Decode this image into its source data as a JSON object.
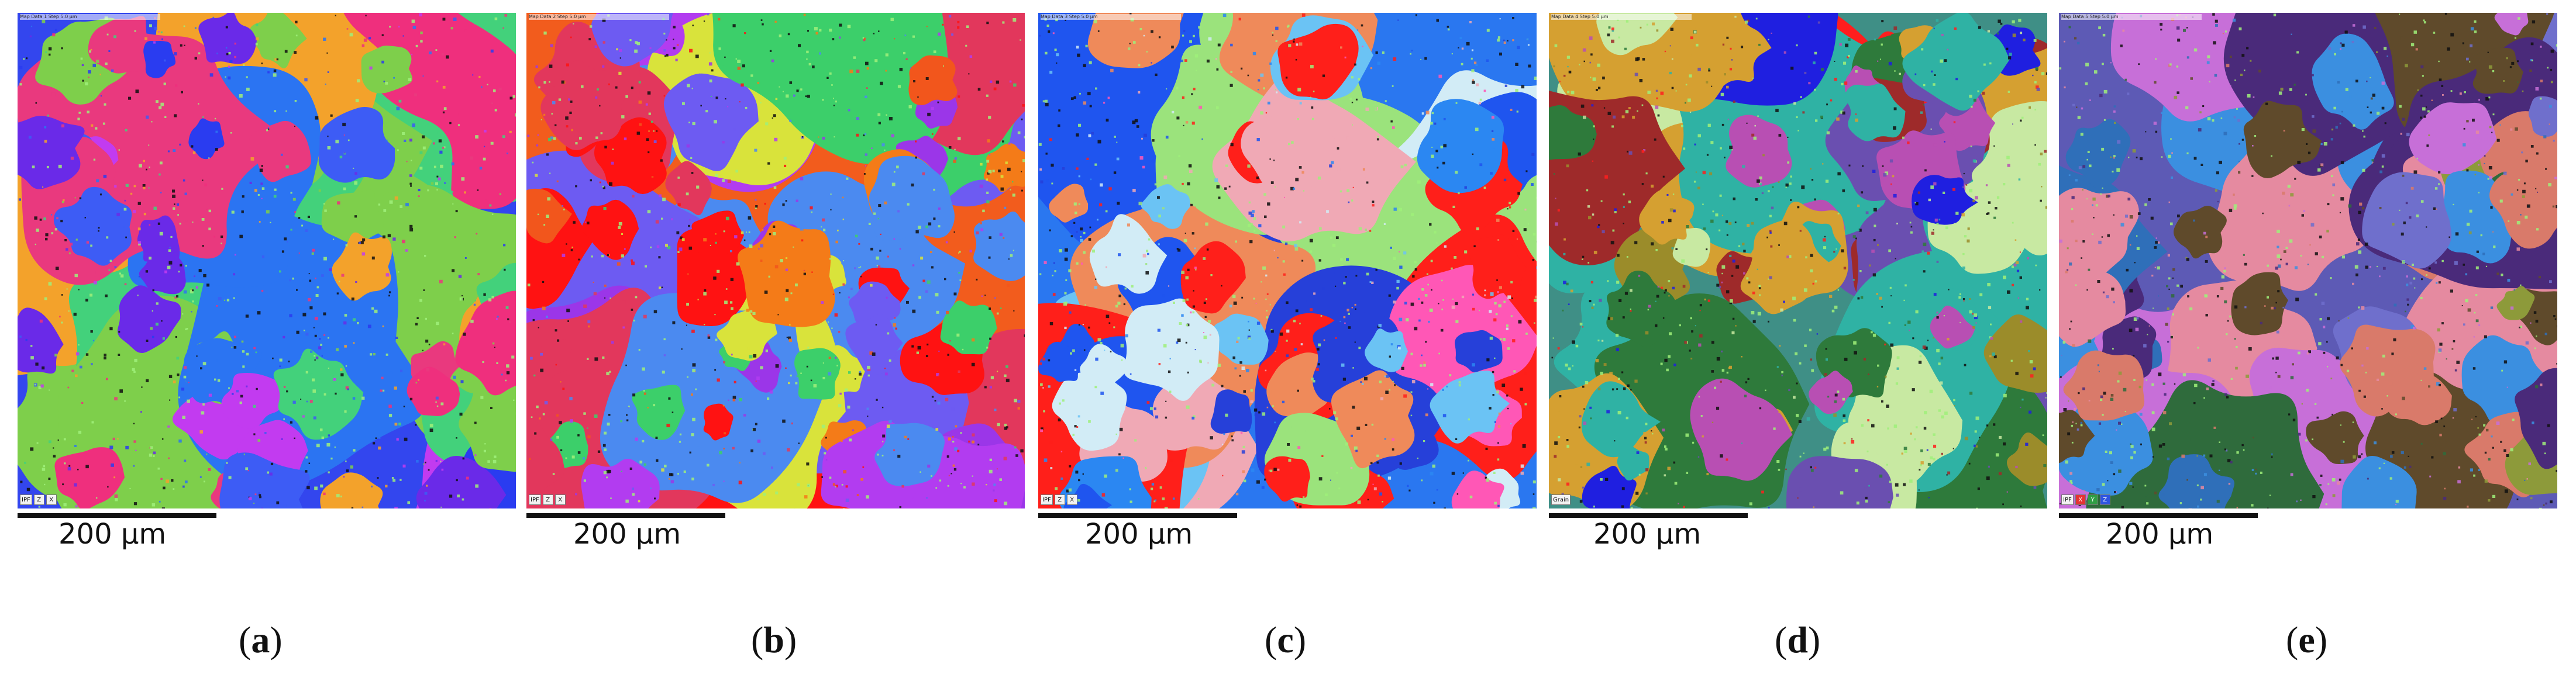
{
  "figure": {
    "panels": [
      {
        "letter": "a",
        "scale_text": "200 µm",
        "header_text": "Map Data 1  Step 5.0 µm",
        "badges": [
          "IPF",
          "Z",
          "X"
        ],
        "palette": [
          "#2a3cf0",
          "#3d5cf5",
          "#6a2ae8",
          "#e9397e",
          "#ef2f7d",
          "#f3a22b",
          "#43d17b",
          "#7ecf4b",
          "#2b74f2",
          "#c23bf0"
        ],
        "background": "#3346ee"
      },
      {
        "letter": "b",
        "scale_text": "200 µm",
        "header_text": "Map Data 2  Step 5.0 µm",
        "badges": [
          "IPF",
          "Z",
          "X"
        ],
        "palette": [
          "#ff1212",
          "#f2561c",
          "#f47b18",
          "#d9e33b",
          "#6d5bf2",
          "#9b36e8",
          "#e2375c",
          "#4b8af0",
          "#3ccf6a",
          "#b23cf0"
        ],
        "background": "#f25c1d"
      },
      {
        "letter": "c",
        "scale_text": "200 µm",
        "header_text": "Map Data 3  Step 5.0 µm",
        "badges": [
          "IPF",
          "Z",
          "X"
        ],
        "palette": [
          "#1f55ef",
          "#2b87f2",
          "#f0a9b5",
          "#ff1f1a",
          "#ef8a5a",
          "#9be37c",
          "#d2ecf6",
          "#ff57b6",
          "#6bc3f4",
          "#2640d9"
        ],
        "background": "#2a77f0"
      },
      {
        "letter": "d",
        "scale_text": "200 µm",
        "header_text": "Map Data 4  Step 5.0 µm",
        "badges": [
          "Grain"
        ],
        "palette": [
          "#9b8c2a",
          "#2e7a3b",
          "#ff1e1e",
          "#1f1fe0",
          "#6a4fb0",
          "#2fb2a4",
          "#c8e9a2",
          "#9e2a2a",
          "#b84fb3",
          "#d5a031"
        ],
        "background": "#3f8f86"
      },
      {
        "letter": "e",
        "scale_text": "200 µm",
        "header_text": "Map Data 5  Step 5.0 µm",
        "badges": [
          "IPF",
          "X",
          "Y",
          "Z"
        ],
        "palette": [
          "#4a2a7a",
          "#e58aa0",
          "#2f6fb9",
          "#5f4a2b",
          "#6f6fcc",
          "#c76fd8",
          "#2f6b3c",
          "#d97a6a",
          "#8d9a3a",
          "#3b8fe0"
        ],
        "background": "#5d5ab5"
      }
    ]
  }
}
